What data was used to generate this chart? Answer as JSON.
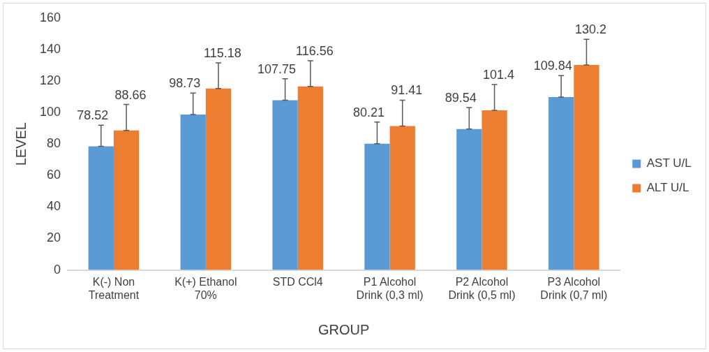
{
  "chart_data": {
    "type": "bar",
    "xlabel": "GROUP",
    "ylabel": "LEVEL",
    "categories": [
      "K(-) Non Treatment",
      "K(+) Ethanol 70%",
      "STD CCl4",
      "P1 Alcohol Drink (0,3 ml)",
      "P2 Alcohol Drink (0,5 ml)",
      "P3 Alcohol Drink (0,7 ml)"
    ],
    "series": [
      {
        "name": "AST U/L",
        "color": "#5b9bd5",
        "values": [
          78.52,
          98.73,
          107.75,
          80.21,
          89.54,
          109.84
        ],
        "errors": [
          [
            78.52,
            92.0
          ],
          [
            98.73,
            112.4
          ],
          [
            107.75,
            121.4
          ],
          [
            80.21,
            93.9
          ],
          [
            89.54,
            103.2
          ],
          [
            109.84,
            123.4
          ]
        ]
      },
      {
        "name": "ALT U/L",
        "color": "#ed7d31",
        "values": [
          88.66,
          115.18,
          116.56,
          91.41,
          101.4,
          130.2
        ],
        "errors": [
          [
            88.66,
            105.1
          ],
          [
            115.18,
            131.5
          ],
          [
            116.56,
            132.9
          ],
          [
            91.41,
            107.8
          ],
          [
            101.4,
            117.8
          ],
          [
            130.2,
            146.5
          ]
        ]
      }
    ],
    "ylim": [
      0,
      160
    ],
    "yticks": [
      0,
      20,
      40,
      60,
      80,
      100,
      120,
      140,
      160
    ],
    "grid": false,
    "legend": "right",
    "data_labels": true
  }
}
